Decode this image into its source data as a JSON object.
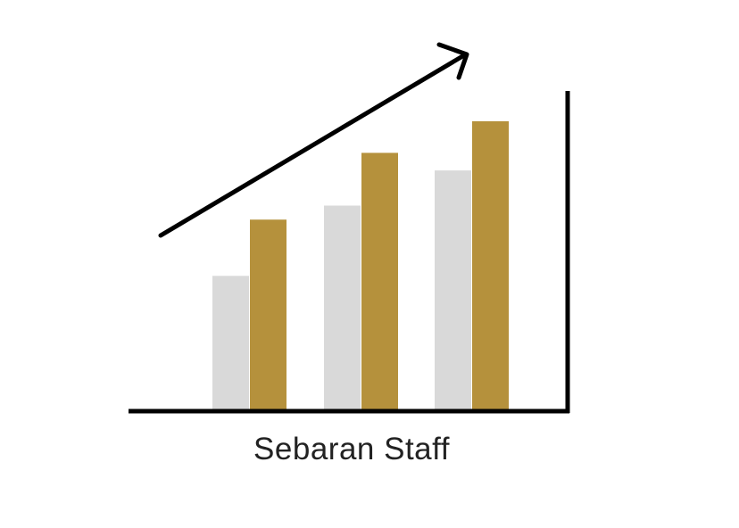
{
  "chart_data": {
    "type": "bar",
    "title": "Sebaran Staff",
    "xlabel": "",
    "ylabel": "",
    "categories": [
      "",
      "",
      ""
    ],
    "series": [
      {
        "values": [
          38,
          58,
          68
        ]
      },
      {
        "values": [
          54,
          73,
          82
        ]
      }
    ],
    "ylim": [
      0,
      100
    ],
    "grid": false,
    "legend": "none",
    "colors": [
      "#d9d9d9",
      "#b5913c"
    ],
    "axis_color": "#000000",
    "trend_arrow": true
  }
}
